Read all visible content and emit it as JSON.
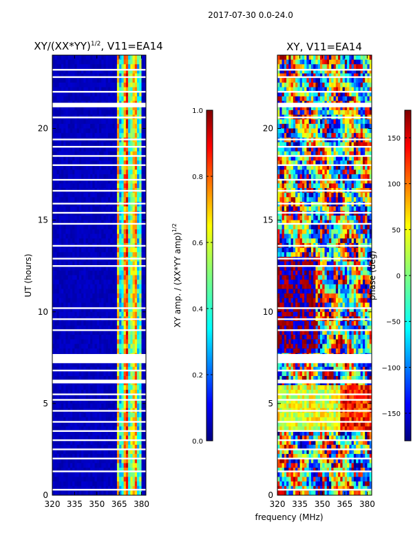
{
  "figure": {
    "suptitle": "2017-07-30 0.0-24.0",
    "xlabel": "frequency (MHz)"
  },
  "chart_data": [
    {
      "type": "heatmap",
      "title_base": "XY/(XX*YY)",
      "title_sup": "1/2",
      "title_tail": ", V11=EA14",
      "xlabel": "",
      "ylabel": "UT (hours)",
      "xlim": [
        320,
        383
      ],
      "ylim": [
        0,
        24
      ],
      "xticks": [
        320,
        335,
        350,
        365,
        380
      ],
      "yticks": [
        0,
        5,
        10,
        15,
        20
      ],
      "colorbar": {
        "label_base": "XY amp. / (XX*YY amp)",
        "label_sup": "1/2",
        "range": [
          0.0,
          1.0
        ],
        "ticks": [
          "0.0",
          "0.2",
          "0.4",
          "0.6",
          "0.8",
          "1.0"
        ],
        "tick_values": [
          0.0,
          0.2,
          0.4,
          0.6,
          0.8,
          1.0
        ]
      },
      "description_of_values": "Mostly ~0 (dark blue) below 363 MHz; bright vertical bands 0.3-0.9 between 363 and 380 MHz",
      "active_band_mhz": [
        363,
        380
      ],
      "band_columns_mhz": [
        364,
        367,
        370,
        373,
        376,
        379
      ],
      "band_levels": [
        0.7,
        0.45,
        0.85,
        0.55,
        0.75,
        0.5
      ],
      "gap_rows_ut": [
        0.3,
        1.3,
        2.0,
        2.5,
        3.0,
        3.5,
        4.0,
        4.6,
        5.2,
        5.5,
        6.2,
        6.8,
        9.0,
        9.6,
        10.2,
        12.5,
        12.9,
        13.6,
        14.8,
        15.4,
        15.9,
        16.6,
        17.2,
        18.0,
        18.5,
        19.0,
        19.4,
        20.6,
        21.2,
        22.0,
        22.8,
        23.2
      ],
      "gap_blocks_ut": [
        [
          7.2,
          7.7
        ],
        [
          6.1,
          6.3
        ],
        [
          21.2,
          21.4
        ]
      ]
    },
    {
      "type": "heatmap",
      "title": "XY, V11=EA14",
      "xlabel": "",
      "ylabel": "",
      "xlim": [
        320,
        383
      ],
      "ylim": [
        0,
        24
      ],
      "xticks": [
        320,
        335,
        350,
        365,
        380
      ],
      "yticks": [
        0,
        5,
        10,
        15,
        20
      ],
      "colorbar": {
        "label": "phase (deg)",
        "range": [
          -180,
          180
        ],
        "ticks": [
          "150",
          "100",
          "50",
          "0",
          "−50",
          "−100",
          "−150"
        ],
        "tick_values": [
          150,
          100,
          50,
          0,
          -50,
          -100,
          -150
        ]
      },
      "description_of_values": "Noisy phase structure spanning the full -180 to 180 deg range across all frequencies",
      "gap_rows_ut": [
        0.3,
        1.3,
        2.0,
        2.5,
        3.0,
        3.5,
        4.0,
        4.6,
        5.2,
        5.5,
        6.2,
        6.8,
        9.0,
        9.6,
        10.2,
        12.5,
        12.9,
        13.6,
        14.8,
        15.4,
        15.9,
        16.6,
        17.2,
        18.0,
        18.5,
        19.0,
        19.4,
        20.6,
        21.2,
        22.0,
        22.8,
        23.2
      ],
      "gap_blocks_ut": [
        [
          7.2,
          7.7
        ],
        [
          6.1,
          6.3
        ],
        [
          21.2,
          21.4
        ]
      ]
    }
  ],
  "colors": {
    "jet_stops": [
      "#00007f",
      "#0000ff",
      "#007fff",
      "#00ffff",
      "#7fff7f",
      "#ffff00",
      "#ff7f00",
      "#ff0000",
      "#7f0000"
    ],
    "axis": "#000000",
    "background": "#ffffff"
  }
}
